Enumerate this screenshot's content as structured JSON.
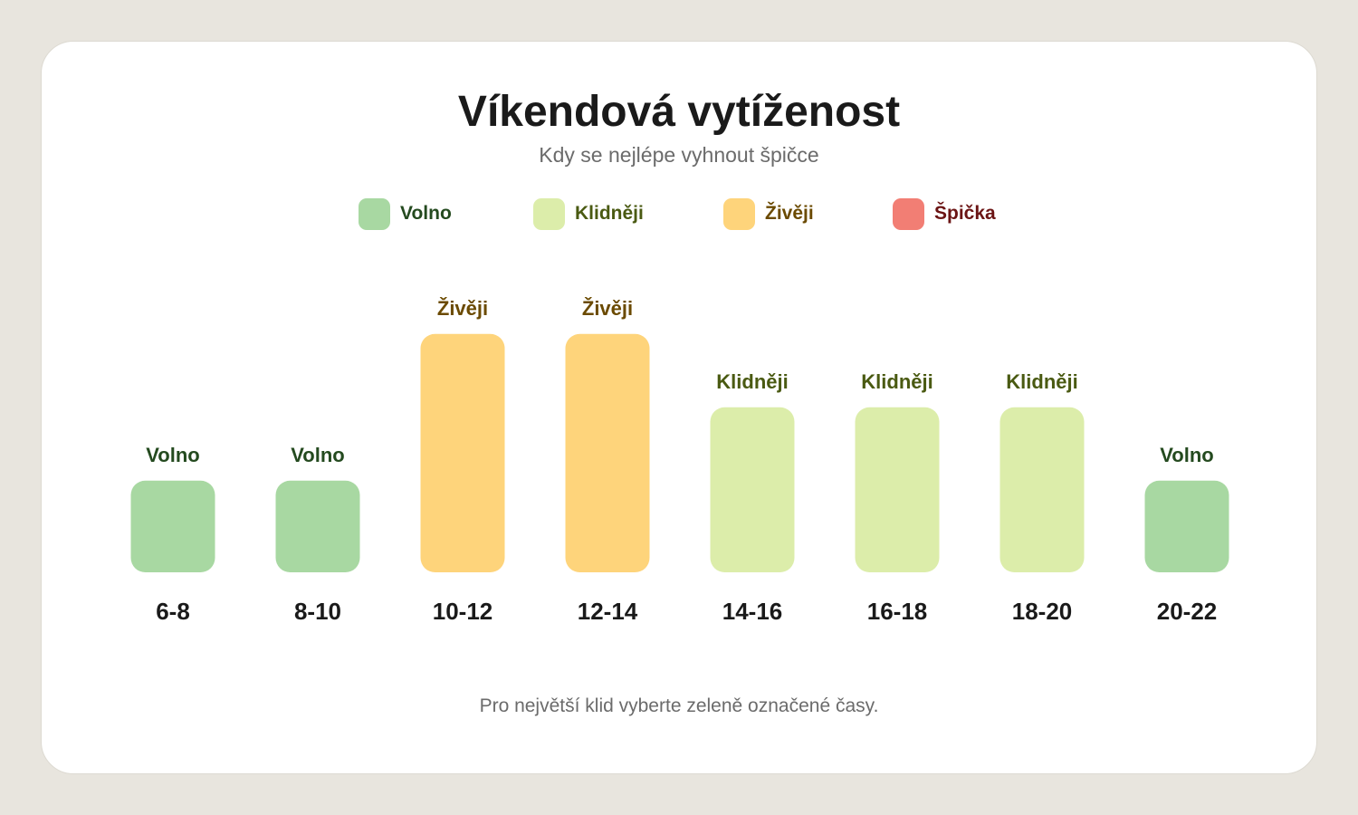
{
  "title": "Víkendová vytíženost",
  "subtitle": "Kdy se nejlépe vyhnout špičce",
  "footnote": "Pro největší klid vyberte zeleně označené časy.",
  "legend": [
    {
      "label": "Volno",
      "color": "#a8d8a2",
      "text_color": "#244a1f"
    },
    {
      "label": "Klidněji",
      "color": "#dcedaa",
      "text_color": "#4a5a12"
    },
    {
      "label": "Živěji",
      "color": "#fed47b",
      "text_color": "#6b4a00"
    },
    {
      "label": "Špička",
      "color": "#f27e74",
      "text_color": "#6b1414"
    }
  ],
  "chart_data": {
    "type": "bar",
    "title": "Víkendová vytíženost",
    "subtitle": "Kdy se nejlépe vyhnout špičce",
    "categories": [
      "6-8",
      "8-10",
      "10-12",
      "12-14",
      "14-16",
      "16-18",
      "18-20",
      "20-22"
    ],
    "values": [
      1,
      1,
      3,
      3,
      2,
      2,
      2,
      1
    ],
    "value_labels": [
      "Volno",
      "Volno",
      "Živěji",
      "Živěji",
      "Klidněji",
      "Klidněji",
      "Klidněji",
      "Volno"
    ],
    "level_names": [
      "Volno",
      "Klidněji",
      "Živěji",
      "Špička"
    ],
    "ylim": [
      0,
      4
    ],
    "grid": false,
    "legend_position": "top-center"
  }
}
